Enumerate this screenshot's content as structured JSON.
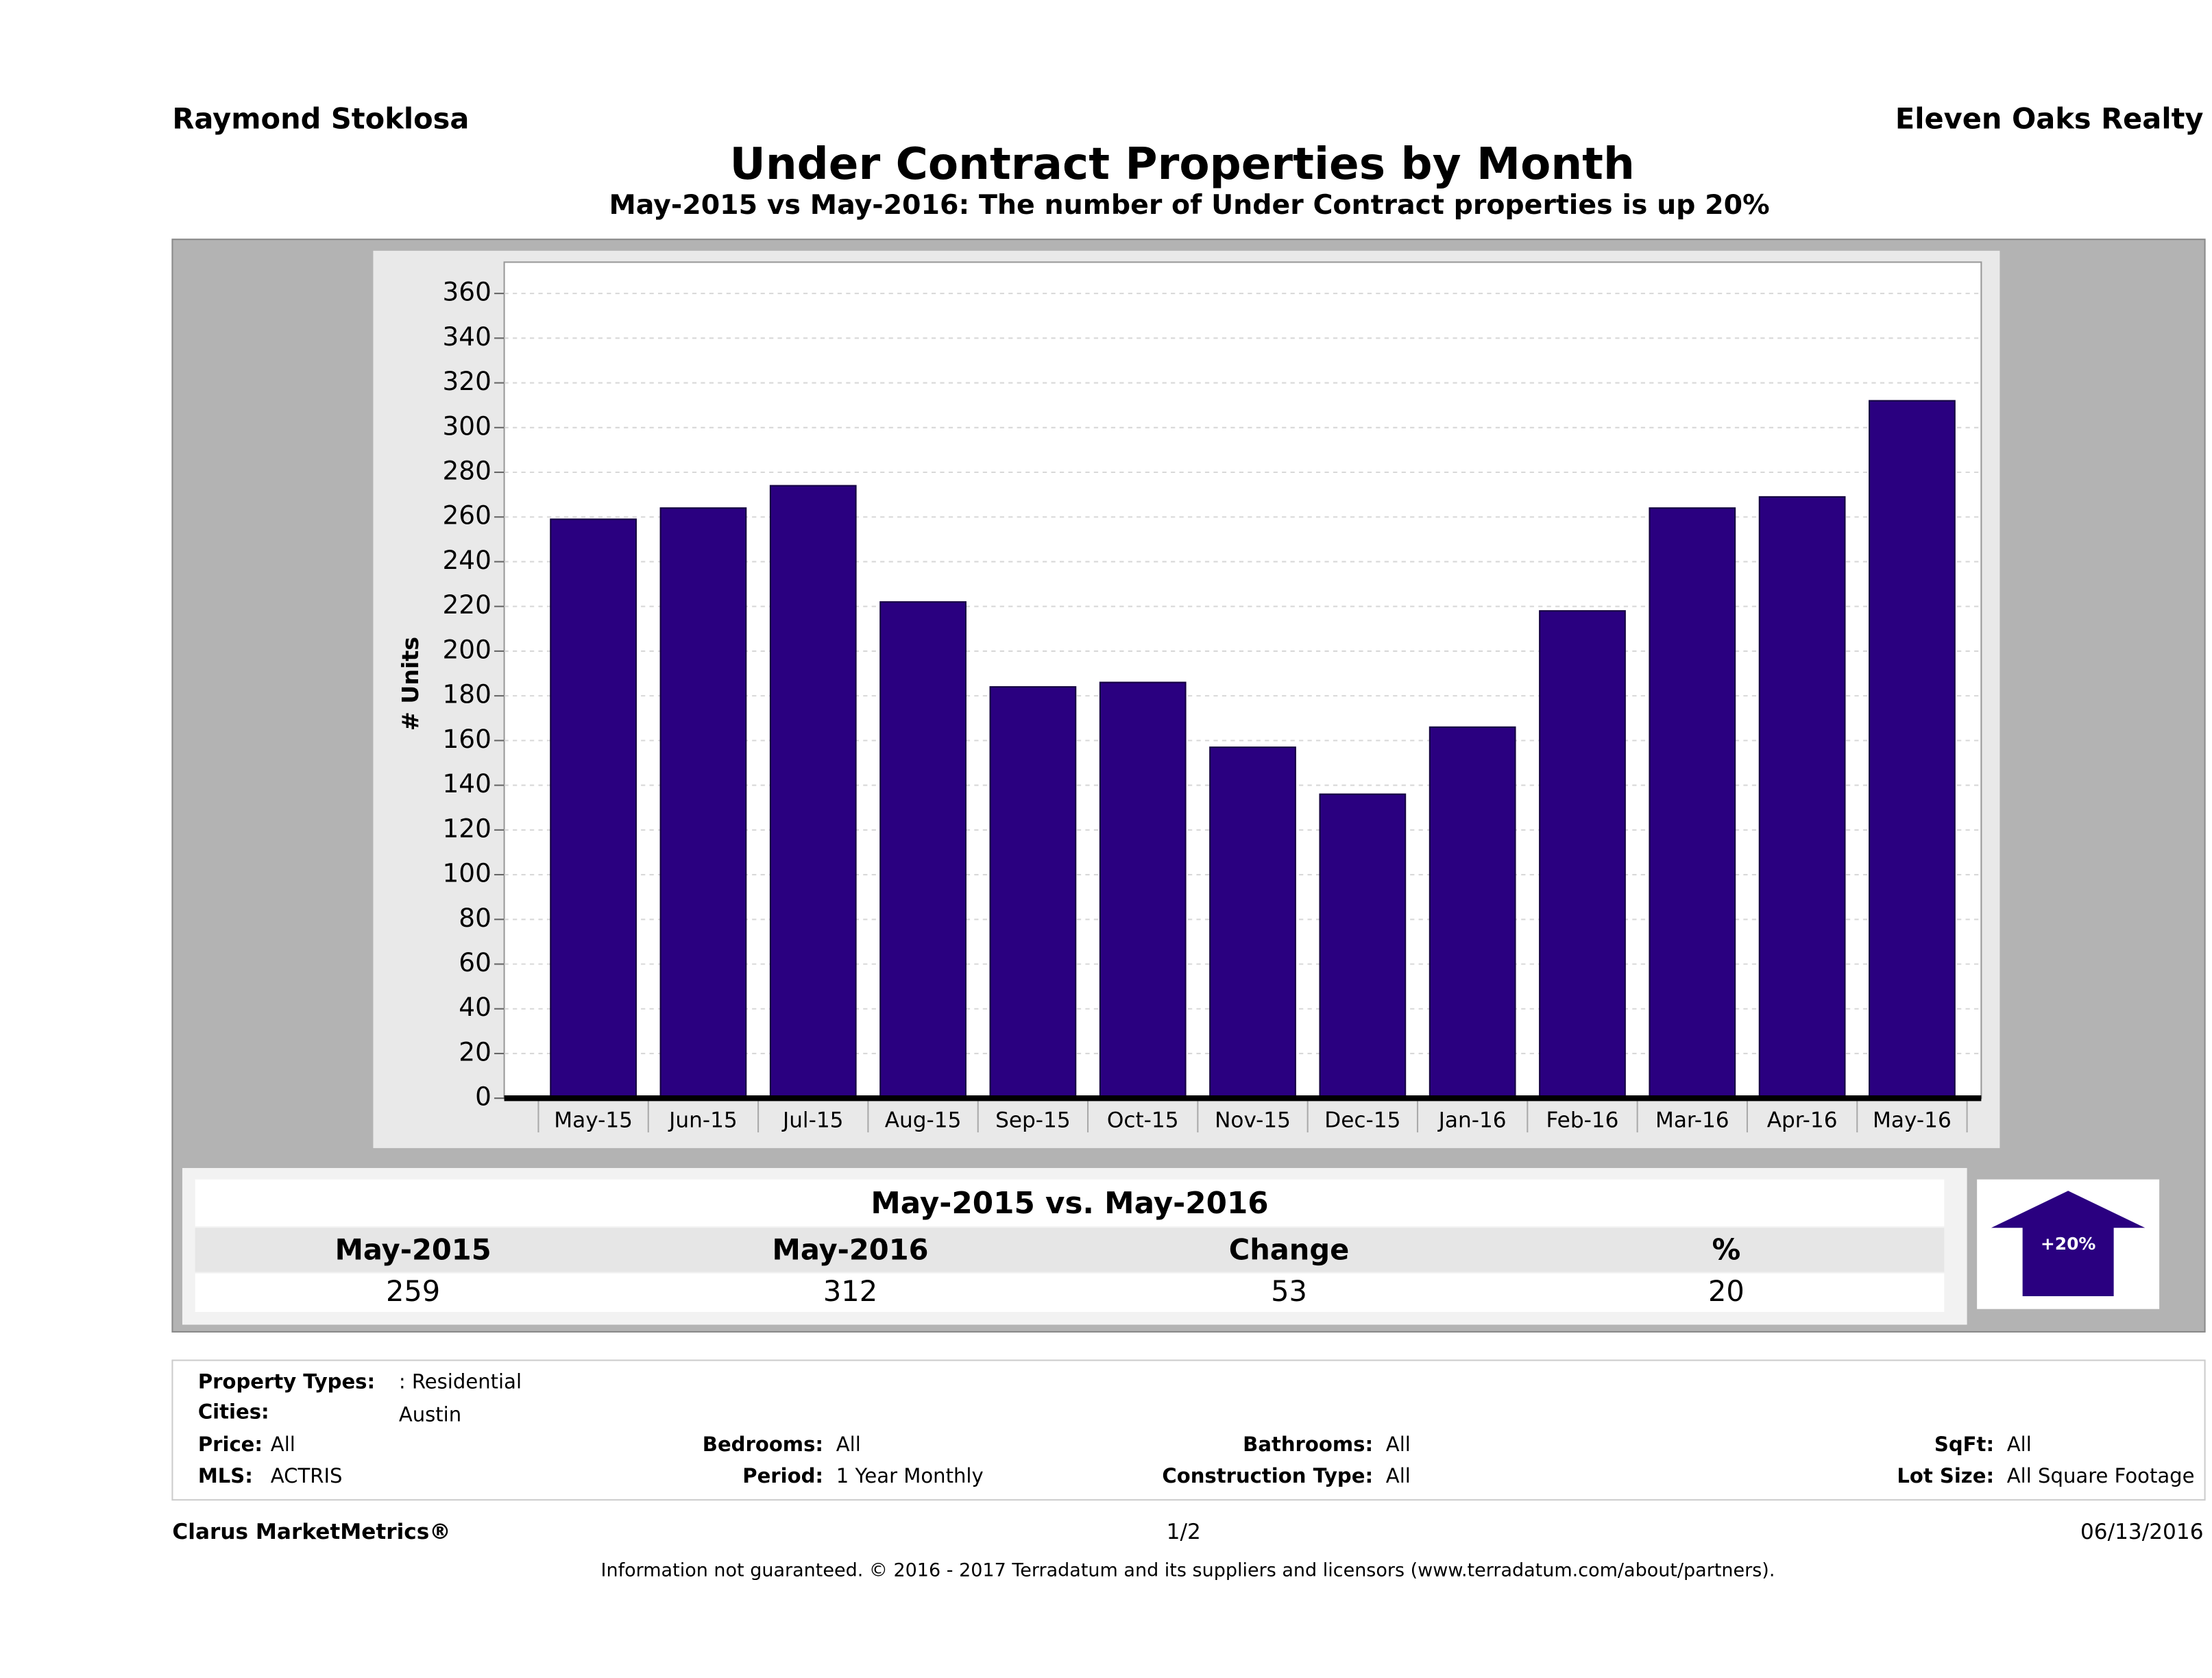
{
  "header": {
    "left": "Raymond Stoklosa",
    "right": "Eleven Oaks Realty"
  },
  "chart_data": {
    "type": "bar",
    "title": "Under Contract Properties by Month",
    "subtitle": "May-2015 vs May-2016: The number of Under Contract  properties is up 20%",
    "y_label": "# Units",
    "categories": [
      "May-15",
      "Jun-15",
      "Jul-15",
      "Aug-15",
      "Sep-15",
      "Oct-15",
      "Nov-15",
      "Dec-15",
      "Jan-16",
      "Feb-16",
      "Mar-16",
      "Apr-16",
      "May-16"
    ],
    "values": [
      259,
      264,
      274,
      222,
      184,
      186,
      157,
      136,
      166,
      218,
      264,
      269,
      312
    ],
    "color": "#2a0080",
    "ylim": [
      0,
      374
    ],
    "yticks": [
      0,
      20,
      40,
      60,
      80,
      100,
      120,
      140,
      160,
      180,
      200,
      220,
      240,
      260,
      280,
      300,
      320,
      340,
      360
    ],
    "grid": true
  },
  "summary": {
    "title": "May-2015 vs. May-2016",
    "columns": [
      "May-2015",
      "May-2016",
      "Change",
      "%"
    ],
    "values": [
      259,
      312,
      53,
      20
    ],
    "badge": "+20%"
  },
  "filters": [
    {
      "label": "Property Types:",
      "value": ": Residential"
    },
    {
      "label": "Cities:",
      "value": "Austin"
    },
    {
      "label": "Price:",
      "value": "All"
    },
    {
      "label": "Bedrooms:",
      "value": "All"
    },
    {
      "label": "Bathrooms:",
      "value": "All"
    },
    {
      "label": "SqFt:",
      "value": "All"
    },
    {
      "label": "MLS:",
      "value": "ACTRIS"
    },
    {
      "label": "Period:",
      "value": "1 Year Monthly"
    },
    {
      "label": "Construction Type:",
      "value": "All"
    },
    {
      "label": "Lot Size:",
      "value": "All Square Footage"
    }
  ],
  "footer": {
    "brand": "Clarus MarketMetrics®",
    "page": "1/2",
    "date": "06/13/2016",
    "disclaimer": "Information not guaranteed. © 2016 - 2017 Terradatum and its suppliers and licensors (www.terradatum.com/about/partners)."
  }
}
